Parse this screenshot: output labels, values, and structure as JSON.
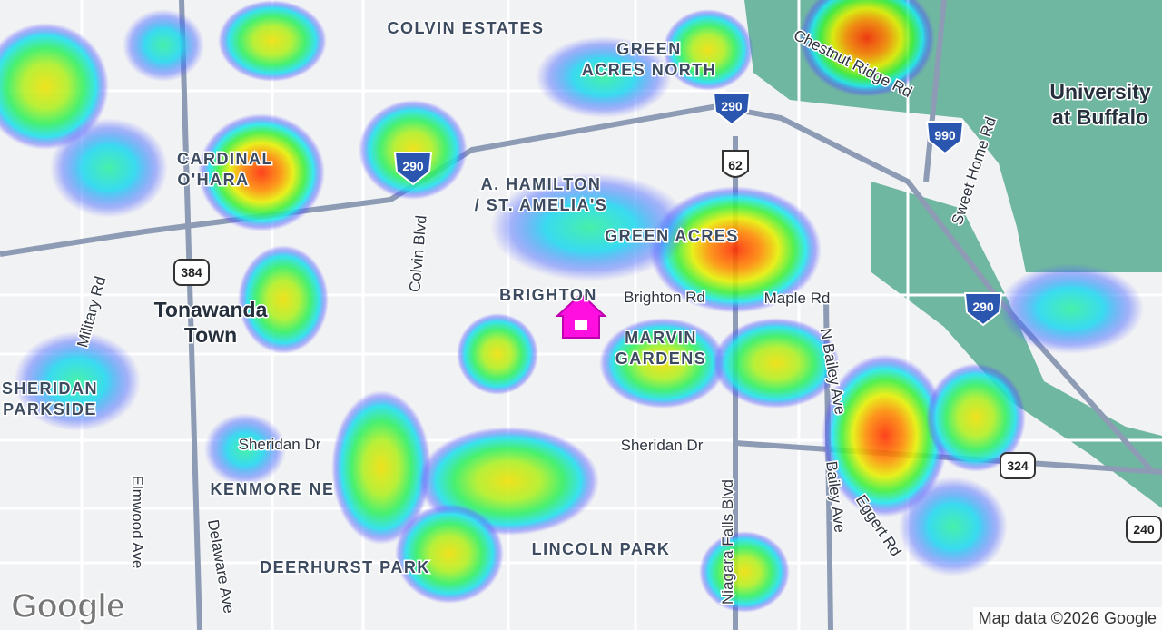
{
  "map": {
    "places": [
      {
        "lines": [
          "COLVIN ESTATES"
        ]
      },
      {
        "lines": [
          "GREEN",
          "ACRES NORTH"
        ]
      },
      {
        "lines": [
          "CARDINAL",
          "O'HARA"
        ]
      },
      {
        "lines": [
          "A. HAMILTON",
          "/ ST. AMELIA'S"
        ]
      },
      {
        "lines": [
          "GREEN ACRES"
        ]
      },
      {
        "lines": [
          "BRIGHTON"
        ]
      },
      {
        "lines": [
          "MARVIN",
          "GARDENS"
        ]
      },
      {
        "lines": [
          "SHERIDAN",
          "PARKSIDE"
        ]
      },
      {
        "lines": [
          "KENMORE NE"
        ]
      },
      {
        "lines": [
          "LINCOLN PARK"
        ]
      },
      {
        "lines": [
          "DEERHURST PARK"
        ]
      }
    ],
    "town": {
      "lines": [
        "Tonawanda",
        "Town"
      ]
    },
    "poi": {
      "lines": [
        "University",
        "at Buffalo"
      ]
    },
    "roads": [
      "Chestnut Ridge Rd",
      "Brighton Rd",
      "Maple Rd",
      "Sheridan Dr",
      "Sheridan Dr",
      "Military Rd",
      "Colvin Blvd",
      "Elmwood Ave",
      "Delaware Ave",
      "Niagara Falls Blvd",
      "N Bailey Ave",
      "Bailey Ave",
      "Eggert Rd",
      "Sweet Home Rd"
    ],
    "shields": [
      "290",
      "290",
      "990",
      "290",
      "62",
      "384",
      "324",
      "240"
    ],
    "attribution": "Map data ©2026 Google",
    "logo": "Google"
  }
}
